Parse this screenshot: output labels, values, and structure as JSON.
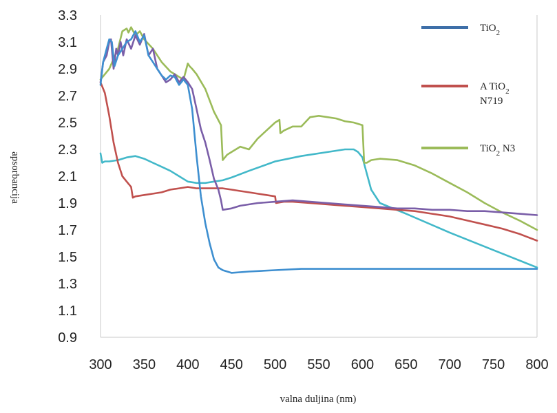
{
  "chart_data": {
    "type": "line",
    "xlabel": "valna duljina (nm)",
    "ylabel": "apsorbancija",
    "xlim": [
      300,
      800
    ],
    "ylim": [
      0.9,
      3.3
    ],
    "xticks": [
      "300",
      "350",
      "400",
      "450",
      "500",
      "550",
      "600",
      "650",
      "700",
      "750",
      "800"
    ],
    "yticks": [
      "3.3",
      "3.1",
      "2.9",
      "2.7",
      "2.5",
      "2.3",
      "2.1",
      "1.9",
      "1.7",
      "1.5",
      "1.3",
      "1.1",
      "0.9"
    ],
    "grid": false,
    "legend_position": "top-right",
    "legend": [
      {
        "base": "TiO",
        "sub": "2",
        "rest": "",
        "line2": "",
        "color": "#3e6fa8"
      },
      {
        "base": "A TiO",
        "sub": "2",
        "rest": "",
        "line2": "N719",
        "color": "#c0504d"
      },
      {
        "base": "TiO",
        "sub": "2",
        "rest": " N3",
        "line2": "",
        "color": "#9bbb59"
      }
    ],
    "series": [
      {
        "color": "#42b8c9",
        "x": [
          300,
          302,
          305,
          310,
          320,
          330,
          340,
          350,
          360,
          370,
          380,
          390,
          400,
          410,
          420,
          430,
          440,
          450,
          470,
          500,
          530,
          560,
          580,
          590,
          595,
          600,
          610,
          620,
          650,
          700,
          750,
          800
        ],
        "y": [
          2.27,
          2.2,
          2.21,
          2.21,
          2.22,
          2.24,
          2.25,
          2.23,
          2.2,
          2.17,
          2.14,
          2.1,
          2.06,
          2.05,
          2.05,
          2.06,
          2.07,
          2.09,
          2.14,
          2.21,
          2.25,
          2.28,
          2.3,
          2.3,
          2.28,
          2.24,
          2.0,
          1.9,
          1.82,
          1.68,
          1.55,
          1.42
        ]
      },
      {
        "color": "#9bbb59",
        "x": [
          300,
          310,
          320,
          325,
          330,
          332,
          335,
          340,
          345,
          350,
          360,
          370,
          380,
          390,
          395,
          400,
          402,
          405,
          410,
          420,
          430,
          438,
          440,
          445,
          450,
          460,
          470,
          480,
          490,
          500,
          505,
          506,
          510,
          520,
          530,
          540,
          550,
          560,
          570,
          580,
          590,
          600,
          602,
          605,
          610,
          620,
          640,
          660,
          680,
          700,
          720,
          740,
          760,
          780,
          800
        ],
        "y": [
          2.82,
          2.9,
          3.05,
          3.18,
          3.2,
          3.17,
          3.21,
          3.15,
          3.18,
          3.12,
          3.05,
          2.95,
          2.88,
          2.84,
          2.82,
          2.94,
          2.92,
          2.9,
          2.86,
          2.75,
          2.58,
          2.48,
          2.22,
          2.26,
          2.28,
          2.32,
          2.3,
          2.38,
          2.44,
          2.5,
          2.52,
          2.42,
          2.44,
          2.47,
          2.47,
          2.54,
          2.55,
          2.54,
          2.53,
          2.51,
          2.5,
          2.48,
          2.2,
          2.2,
          2.22,
          2.23,
          2.22,
          2.18,
          2.12,
          2.05,
          1.98,
          1.9,
          1.83,
          1.77,
          1.7
        ]
      },
      {
        "color": "#c0504d",
        "x": [
          300,
          305,
          310,
          315,
          320,
          325,
          330,
          335,
          337,
          340,
          350,
          360,
          370,
          380,
          390,
          400,
          410,
          420,
          430,
          440,
          450,
          460,
          470,
          480,
          490,
          500,
          501,
          510,
          520,
          540,
          560,
          580,
          600,
          620,
          640,
          660,
          680,
          700,
          720,
          740,
          760,
          780,
          800
        ],
        "y": [
          2.8,
          2.72,
          2.55,
          2.35,
          2.2,
          2.1,
          2.06,
          2.02,
          1.94,
          1.95,
          1.96,
          1.97,
          1.98,
          2.0,
          2.01,
          2.02,
          2.01,
          2.01,
          2.01,
          2.01,
          2.0,
          1.99,
          1.98,
          1.97,
          1.96,
          1.95,
          1.9,
          1.91,
          1.91,
          1.9,
          1.89,
          1.88,
          1.87,
          1.86,
          1.85,
          1.84,
          1.82,
          1.8,
          1.77,
          1.74,
          1.71,
          1.67,
          1.62
        ]
      },
      {
        "color": "#7a5ea8",
        "x": [
          300,
          303,
          307,
          310,
          312,
          315,
          318,
          320,
          323,
          326,
          330,
          335,
          340,
          345,
          350,
          355,
          360,
          365,
          370,
          375,
          380,
          385,
          390,
          395,
          400,
          405,
          410,
          415,
          420,
          425,
          430,
          435,
          438,
          440,
          450,
          460,
          480,
          500,
          520,
          540,
          560,
          580,
          600,
          620,
          640,
          660,
          680,
          700,
          720,
          740,
          760,
          780,
          800
        ],
        "y": [
          2.8,
          2.95,
          3.0,
          3.1,
          3.12,
          2.9,
          3.05,
          3.0,
          3.1,
          3.0,
          3.12,
          3.05,
          3.15,
          3.08,
          3.16,
          3.0,
          3.05,
          2.9,
          2.85,
          2.8,
          2.82,
          2.86,
          2.8,
          2.84,
          2.8,
          2.75,
          2.6,
          2.45,
          2.35,
          2.22,
          2.08,
          2.0,
          1.92,
          1.85,
          1.86,
          1.88,
          1.9,
          1.91,
          1.92,
          1.91,
          1.9,
          1.89,
          1.88,
          1.87,
          1.86,
          1.86,
          1.85,
          1.85,
          1.84,
          1.84,
          1.83,
          1.82,
          1.81
        ]
      },
      {
        "color": "#3e8fd0",
        "x": [
          300,
          303,
          307,
          310,
          313,
          316,
          320,
          325,
          330,
          335,
          340,
          345,
          350,
          355,
          360,
          365,
          370,
          375,
          380,
          385,
          390,
          395,
          400,
          405,
          410,
          415,
          420,
          425,
          430,
          435,
          440,
          450,
          470,
          500,
          530,
          560,
          600,
          650,
          700,
          750,
          800
        ],
        "y": [
          2.78,
          2.95,
          3.05,
          3.12,
          3.1,
          2.92,
          3.0,
          3.05,
          3.1,
          3.12,
          3.18,
          3.1,
          3.15,
          3.0,
          2.95,
          2.9,
          2.85,
          2.82,
          2.85,
          2.84,
          2.78,
          2.82,
          2.78,
          2.6,
          2.25,
          1.95,
          1.75,
          1.6,
          1.48,
          1.42,
          1.4,
          1.38,
          1.39,
          1.4,
          1.41,
          1.41,
          1.41,
          1.41,
          1.41,
          1.41,
          1.41
        ]
      }
    ]
  }
}
